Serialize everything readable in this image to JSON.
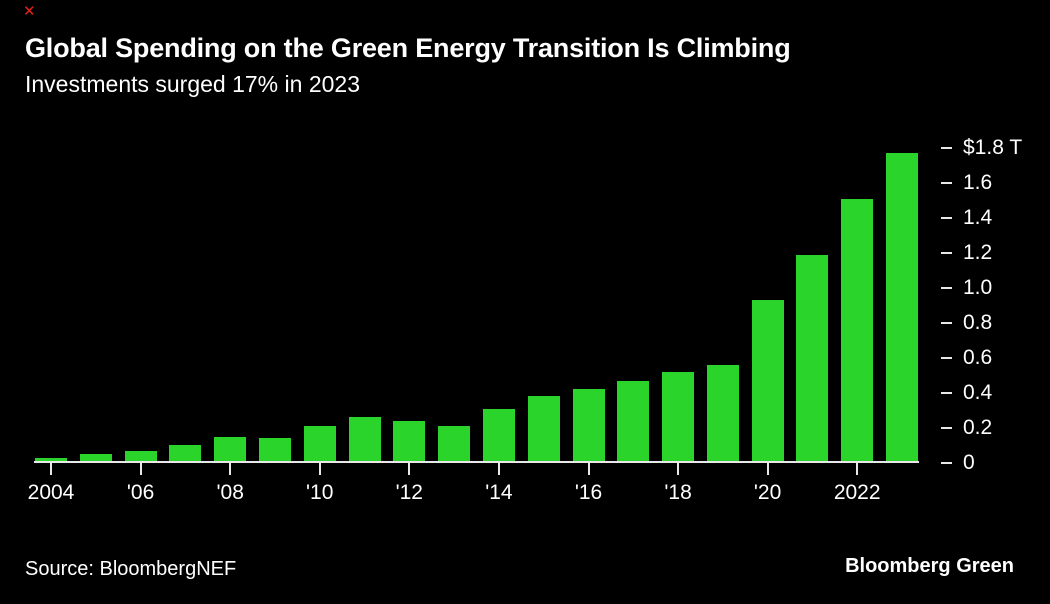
{
  "window": {
    "close_label": "✕",
    "close_color": "#e5231b"
  },
  "header": {
    "title": "Global Spending on the Green Energy Transition Is Climbing",
    "subtitle": "Investments surged 17% in 2023"
  },
  "chart_data": {
    "type": "bar",
    "title": "Global Spending on the Green Energy Transition Is Climbing",
    "subtitle": "Investments surged 17% in 2023",
    "unit": "$ trillion",
    "categories": [
      "2004",
      "2005",
      "2006",
      "2007",
      "2008",
      "2009",
      "2010",
      "2011",
      "2012",
      "2013",
      "2014",
      "2015",
      "2016",
      "2017",
      "2018",
      "2019",
      "2020",
      "2021",
      "2022",
      "2023"
    ],
    "values": [
      0.03,
      0.05,
      0.07,
      0.1,
      0.15,
      0.14,
      0.21,
      0.26,
      0.24,
      0.21,
      0.31,
      0.38,
      0.42,
      0.47,
      0.52,
      0.56,
      0.93,
      1.19,
      1.51,
      1.77
    ],
    "ylim": [
      0,
      1.8
    ],
    "y_axis_position": "right",
    "grid": false,
    "legend": false,
    "y_ticks": [
      {
        "value": 1.8,
        "label": "$1.8 T"
      },
      {
        "value": 1.6,
        "label": "1.6"
      },
      {
        "value": 1.4,
        "label": "1.4"
      },
      {
        "value": 1.2,
        "label": "1.2"
      },
      {
        "value": 1.0,
        "label": "1.0"
      },
      {
        "value": 0.8,
        "label": "0.8"
      },
      {
        "value": 0.6,
        "label": "0.6"
      },
      {
        "value": 0.4,
        "label": "0.4"
      },
      {
        "value": 0.2,
        "label": "0.2"
      },
      {
        "value": 0,
        "label": "0"
      }
    ],
    "x_ticks": [
      {
        "year": "2004",
        "label": "2004"
      },
      {
        "year": "2006",
        "label": "'06"
      },
      {
        "year": "2008",
        "label": "'08"
      },
      {
        "year": "2010",
        "label": "'10"
      },
      {
        "year": "2012",
        "label": "'12"
      },
      {
        "year": "2014",
        "label": "'14"
      },
      {
        "year": "2016",
        "label": "'16"
      },
      {
        "year": "2018",
        "label": "'18"
      },
      {
        "year": "2020",
        "label": "'20"
      },
      {
        "year": "2022",
        "label": "2022"
      }
    ],
    "bar_color": "#2bd42b",
    "axis_color": "#e8e8e8",
    "background": "#000000",
    "text_color": "#ffffff"
  },
  "footer": {
    "source": "Source: BloombergNEF",
    "brand": "Bloomberg Green"
  }
}
